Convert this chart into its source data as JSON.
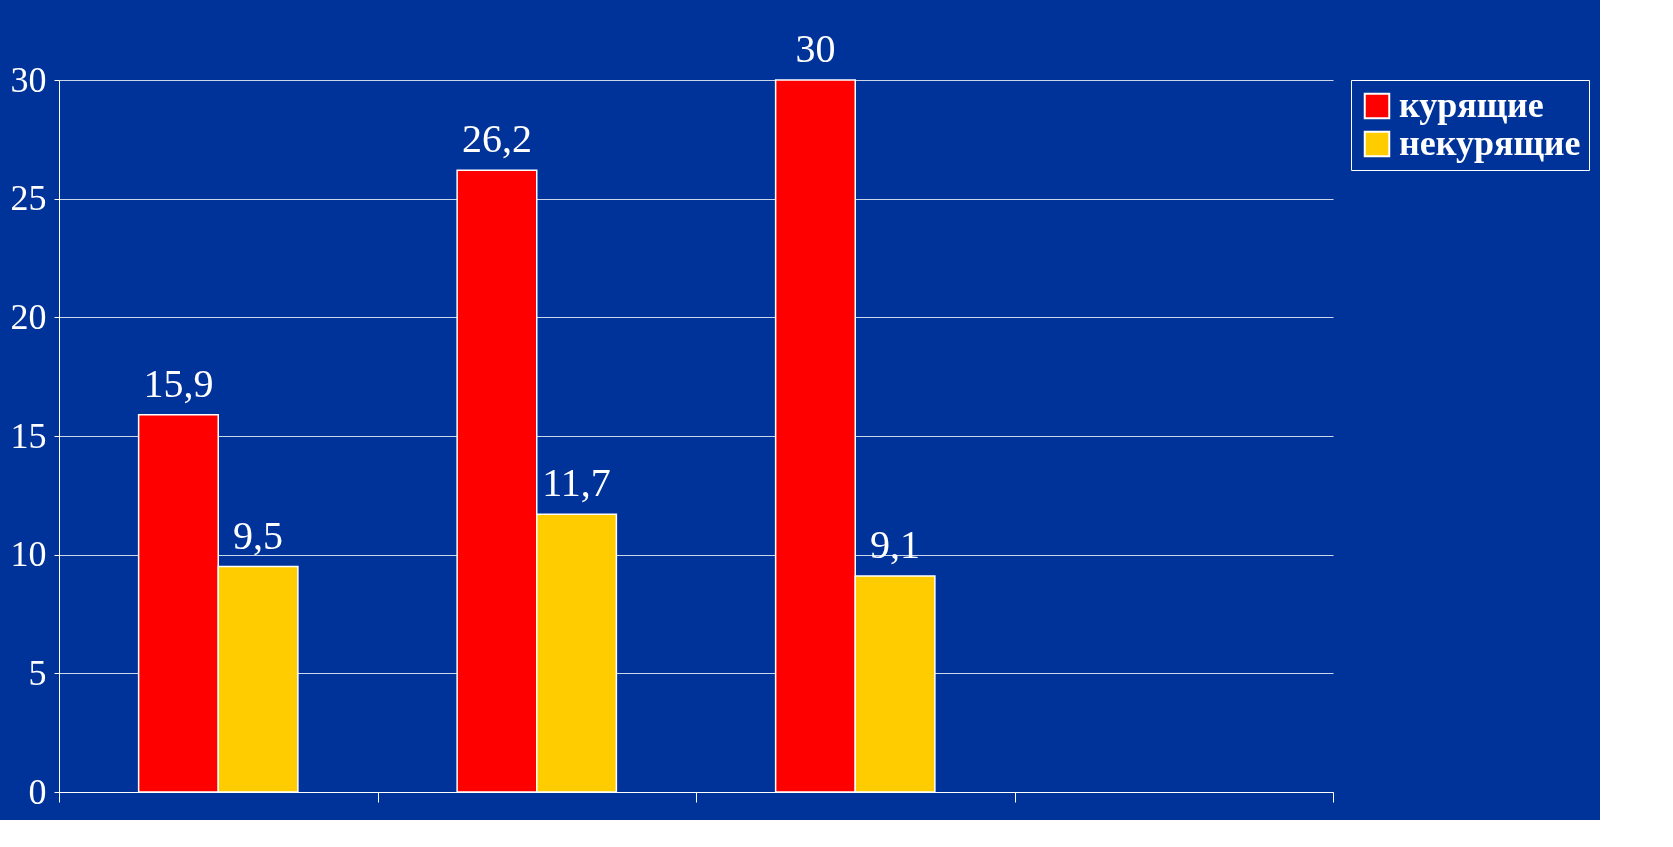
{
  "chart_data": {
    "type": "bar",
    "categories": [
      null,
      null,
      null,
      null
    ],
    "series": [
      {
        "name": "курящие",
        "color": "#ff0000",
        "values": [
          15.9,
          26.2,
          30,
          null
        ],
        "value_labels": [
          "15,9",
          "26,2",
          "30",
          null
        ]
      },
      {
        "name": "некурящие",
        "color": "#ffcc00",
        "values": [
          9.5,
          11.7,
          9.1,
          null
        ],
        "value_labels": [
          "9,5",
          "11,7",
          "9,1",
          null
        ]
      }
    ],
    "ylim": [
      0,
      30
    ],
    "yticks": [
      0,
      5,
      10,
      15,
      20,
      25,
      30
    ],
    "grid": "y",
    "legend": "right",
    "tick_labels": "y"
  }
}
